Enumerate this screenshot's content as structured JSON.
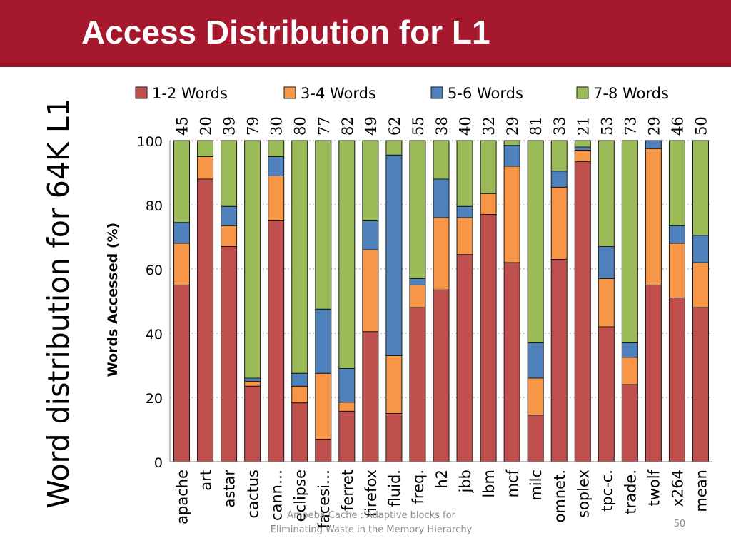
{
  "slide": {
    "title": "Access Distribution for L1",
    "side_title": "Word distribution for 64K L1",
    "footer_line1": "Amoeba Cache : Adaptive blocks for",
    "footer_line2": "Eliminating Waste in the Memory Hierarchy",
    "page_number": "50"
  },
  "colors": {
    "title_bar": "#A5182D",
    "title_stripe": "#8E1424",
    "words_1_2": "#C0504D",
    "words_3_4": "#F79646",
    "words_5_6": "#4F81BD",
    "words_7_8": "#9BBB59",
    "bar_outline": "#1a1a1a",
    "grid": "#a0a0a0"
  },
  "chart_data": {
    "type": "bar",
    "stacked": true,
    "categories": [
      "apache",
      "art",
      "astar",
      "cactus",
      "cann…",
      "eclipse",
      "facesi…",
      "ferret",
      "firefox",
      "fluid.",
      "freq.",
      "h2",
      "jbb",
      "lbm",
      "mcf",
      "milc",
      "omnet.",
      "soplex",
      "tpc-c.",
      "trade.",
      "twolf",
      "x264",
      "mean"
    ],
    "top_labels": [
      "45",
      "20",
      "39",
      "79",
      "30",
      "80",
      "77",
      "82",
      "49",
      "62",
      "55",
      "38",
      "40",
      "32",
      "29",
      "81",
      "33",
      "21",
      "53",
      "73",
      "29",
      "46",
      "50"
    ],
    "series": [
      {
        "name": "1-2 Words",
        "values": [
          55,
          88,
          67,
          23.5,
          75,
          18.3,
          7,
          15.7,
          40.5,
          15,
          48,
          53.5,
          64.5,
          77,
          62,
          14.5,
          63,
          93.5,
          42,
          24,
          55,
          51,
          48
        ]
      },
      {
        "name": "3-4 Words",
        "values": [
          13,
          7,
          6.5,
          1.5,
          14,
          5.2,
          20.5,
          2.8,
          25.5,
          18,
          7,
          22.5,
          11.5,
          6.5,
          30,
          11.5,
          22.5,
          3.5,
          15,
          8.5,
          42.5,
          17,
          14
        ]
      },
      {
        "name": "5-6 Words",
        "values": [
          6.5,
          0,
          6,
          1,
          6,
          4,
          20,
          10.5,
          9,
          62.5,
          2,
          12,
          3.5,
          0,
          6.5,
          11,
          5,
          1,
          10,
          4.5,
          2.5,
          5.5,
          8.5
        ]
      },
      {
        "name": "7-8 Words",
        "values": [
          25.5,
          5,
          20.5,
          74,
          5,
          72.5,
          52.5,
          71,
          25,
          4.5,
          43,
          12,
          20.5,
          16.5,
          1.5,
          63,
          9.5,
          2,
          33,
          63,
          0,
          26.5,
          29.5
        ]
      }
    ],
    "ylabel": "Words Accessed (%)",
    "ylim": [
      0,
      100
    ],
    "yticks": [
      "0",
      "20",
      "40",
      "60",
      "80",
      "100"
    ],
    "grid": true,
    "legend_position": "top"
  }
}
